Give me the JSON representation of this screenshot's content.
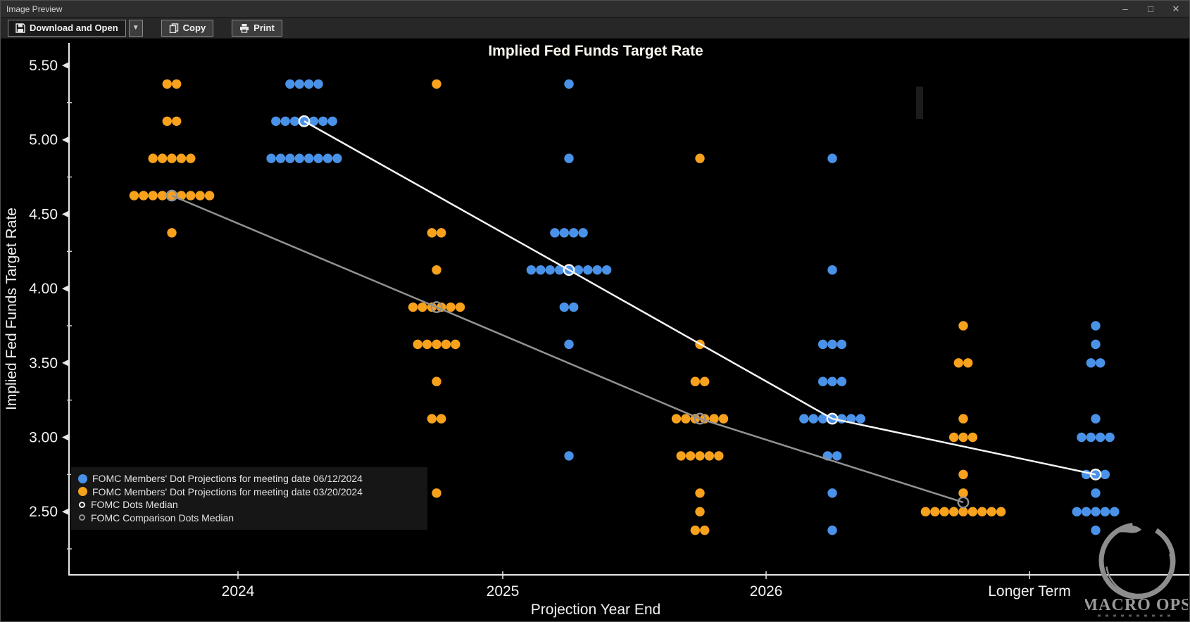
{
  "window": {
    "title": "Image Preview",
    "minimize_glyph": "–",
    "maximize_glyph": "□",
    "close_glyph": "✕"
  },
  "toolbar": {
    "download_label": "Download and Open",
    "dropdown_glyph": "▼",
    "copy_label": "Copy",
    "print_label": "Print"
  },
  "logo": {
    "name": "MACRO OPS"
  },
  "chart_data": {
    "type": "scatter",
    "title": "Implied Fed Funds Target Rate",
    "xlabel": "Projection Year End",
    "ylabel": "Implied Fed Funds Target Rate",
    "ylim": [
      2.1,
      5.66
    ],
    "grid": false,
    "legend_position": "bottom-left",
    "y_major_ticks": [
      "5.50",
      "5.00",
      "4.50",
      "4.00",
      "3.50",
      "3.00",
      "2.50"
    ],
    "y_minor_ticks": [
      5.25,
      4.75,
      4.25,
      3.75,
      3.25,
      2.75,
      2.25
    ],
    "categories": [
      "2024",
      "2025",
      "2026",
      "Longer Term"
    ],
    "colors": {
      "current": "#4a92e8",
      "comparison": "#f7a11d",
      "median": "#f5f5f5",
      "comparison_median": "#929292"
    },
    "series": [
      {
        "name": "FOMC Members' Dot Projections for meeting date 06/12/2024",
        "color_key": "current",
        "offset": 1,
        "rows": [
          {
            "cat": 0,
            "value": 5.375,
            "count": 4
          },
          {
            "cat": 0,
            "value": 5.125,
            "count": 7
          },
          {
            "cat": 0,
            "value": 4.875,
            "count": 8
          },
          {
            "cat": 1,
            "value": 5.375,
            "count": 1
          },
          {
            "cat": 1,
            "value": 4.875,
            "count": 1
          },
          {
            "cat": 1,
            "value": 4.375,
            "count": 4
          },
          {
            "cat": 1,
            "value": 4.125,
            "count": 9
          },
          {
            "cat": 1,
            "value": 3.875,
            "count": 2
          },
          {
            "cat": 1,
            "value": 3.625,
            "count": 1
          },
          {
            "cat": 1,
            "value": 2.875,
            "count": 1
          },
          {
            "cat": 2,
            "value": 4.875,
            "count": 1
          },
          {
            "cat": 2,
            "value": 4.125,
            "count": 1
          },
          {
            "cat": 2,
            "value": 3.625,
            "count": 3
          },
          {
            "cat": 2,
            "value": 3.375,
            "count": 3
          },
          {
            "cat": 2,
            "value": 3.125,
            "count": 7
          },
          {
            "cat": 2,
            "value": 2.875,
            "count": 2
          },
          {
            "cat": 2,
            "value": 2.625,
            "count": 1
          },
          {
            "cat": 2,
            "value": 2.375,
            "count": 1
          },
          {
            "cat": 3,
            "value": 3.75,
            "count": 1
          },
          {
            "cat": 3,
            "value": 3.625,
            "count": 1
          },
          {
            "cat": 3,
            "value": 3.5,
            "count": 2
          },
          {
            "cat": 3,
            "value": 3.125,
            "count": 1
          },
          {
            "cat": 3,
            "value": 3.0,
            "count": 4
          },
          {
            "cat": 3,
            "value": 2.75,
            "count": 3
          },
          {
            "cat": 3,
            "value": 2.625,
            "count": 1
          },
          {
            "cat": 3,
            "value": 2.5,
            "count": 5
          },
          {
            "cat": 3,
            "value": 2.375,
            "count": 1
          }
        ]
      },
      {
        "name": "FOMC Members' Dot Projections for meeting date 03/20/2024",
        "color_key": "comparison",
        "offset": -1,
        "rows": [
          {
            "cat": 0,
            "value": 5.375,
            "count": 2
          },
          {
            "cat": 0,
            "value": 5.125,
            "count": 2
          },
          {
            "cat": 0,
            "value": 4.875,
            "count": 5
          },
          {
            "cat": 0,
            "value": 4.625,
            "count": 9
          },
          {
            "cat": 0,
            "value": 4.375,
            "count": 1
          },
          {
            "cat": 1,
            "value": 5.375,
            "count": 1
          },
          {
            "cat": 1,
            "value": 4.375,
            "count": 2
          },
          {
            "cat": 1,
            "value": 4.125,
            "count": 1
          },
          {
            "cat": 1,
            "value": 3.875,
            "count": 6
          },
          {
            "cat": 1,
            "value": 3.625,
            "count": 5
          },
          {
            "cat": 1,
            "value": 3.375,
            "count": 1
          },
          {
            "cat": 1,
            "value": 3.125,
            "count": 2
          },
          {
            "cat": 1,
            "value": 2.625,
            "count": 1
          },
          {
            "cat": 2,
            "value": 4.875,
            "count": 1
          },
          {
            "cat": 2,
            "value": 3.625,
            "count": 1
          },
          {
            "cat": 2,
            "value": 3.375,
            "count": 2
          },
          {
            "cat": 2,
            "value": 3.125,
            "count": 6
          },
          {
            "cat": 2,
            "value": 2.875,
            "count": 5
          },
          {
            "cat": 2,
            "value": 2.625,
            "count": 1
          },
          {
            "cat": 2,
            "value": 2.5,
            "count": 1
          },
          {
            "cat": 2,
            "value": 2.375,
            "count": 2
          },
          {
            "cat": 3,
            "value": 3.75,
            "count": 1
          },
          {
            "cat": 3,
            "value": 3.5,
            "count": 2
          },
          {
            "cat": 3,
            "value": 3.125,
            "count": 1
          },
          {
            "cat": 3,
            "value": 3.0,
            "count": 3
          },
          {
            "cat": 3,
            "value": 2.75,
            "count": 1
          },
          {
            "cat": 3,
            "value": 2.625,
            "count": 1
          },
          {
            "cat": 3,
            "value": 2.5,
            "count": 9
          }
        ]
      }
    ],
    "medians": [
      {
        "name": "FOMC Dots Median",
        "color_key": "median",
        "offset": 1,
        "points": [
          {
            "cat": 0,
            "value": 5.125
          },
          {
            "cat": 1,
            "value": 4.125
          },
          {
            "cat": 2,
            "value": 3.125
          },
          {
            "cat": 3,
            "value": 2.75
          }
        ]
      },
      {
        "name": "FOMC Comparison Dots Median",
        "color_key": "comparison_median",
        "offset": -1,
        "points": [
          {
            "cat": 0,
            "value": 4.625
          },
          {
            "cat": 1,
            "value": 3.875
          },
          {
            "cat": 2,
            "value": 3.125
          },
          {
            "cat": 3,
            "value": 2.5625
          }
        ]
      }
    ]
  }
}
